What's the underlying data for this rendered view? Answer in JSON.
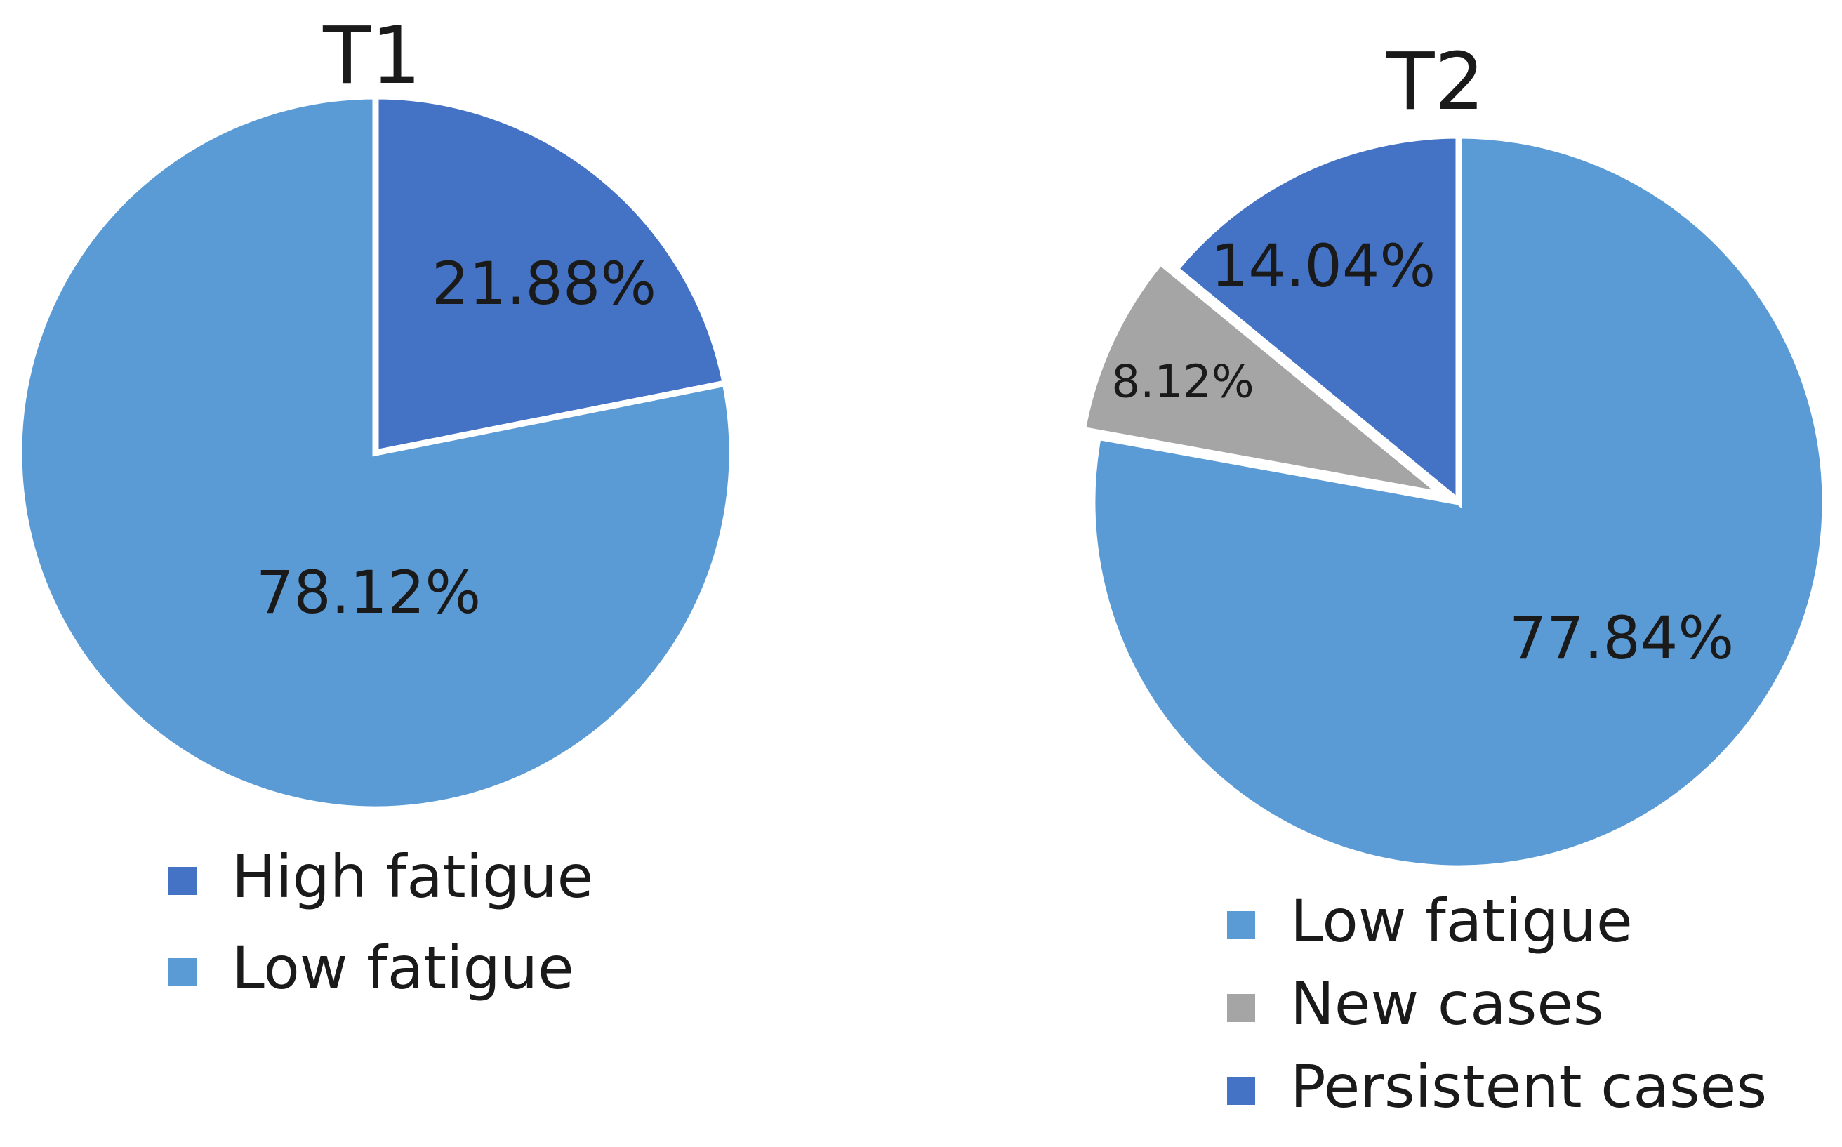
{
  "colors": {
    "high_fatigue": "#4472c4",
    "low_fatigue": "#5b9bd5",
    "new_cases": "#a5a5a5",
    "persistent_cases": "#4472c4",
    "slice_border": "#ffffff",
    "text": "#1a1a1a"
  },
  "chart_data": [
    {
      "type": "pie",
      "title": "T1",
      "start_angle_deg": 0,
      "direction": "clockwise",
      "slices": [
        {
          "label": "High fatigue",
          "value": 21.88,
          "display": "21.88%",
          "color_key": "high_fatigue"
        },
        {
          "label": "Low fatigue",
          "value": 78.12,
          "display": "78.12%",
          "color_key": "low_fatigue"
        }
      ],
      "legend": {
        "position": "bottom",
        "entries": [
          "High fatigue",
          "Low fatigue"
        ],
        "color_keys": [
          "high_fatigue",
          "low_fatigue"
        ]
      }
    },
    {
      "type": "pie",
      "title": "T2",
      "start_angle_deg": 0,
      "direction": "clockwise",
      "slices": [
        {
          "label": "Low fatigue",
          "value": 77.84,
          "display": "77.84%",
          "color_key": "low_fatigue"
        },
        {
          "label": "New cases",
          "value": 8.12,
          "display": "8.12%",
          "color_key": "new_cases"
        },
        {
          "label": "Persistent cases",
          "value": 14.04,
          "display": "14.04%",
          "color_key": "persistent_cases"
        }
      ],
      "legend": {
        "position": "bottom",
        "entries": [
          "Low fatigue",
          "New cases",
          "Persistent cases"
        ],
        "color_keys": [
          "low_fatigue",
          "new_cases",
          "persistent_cases"
        ]
      }
    }
  ]
}
